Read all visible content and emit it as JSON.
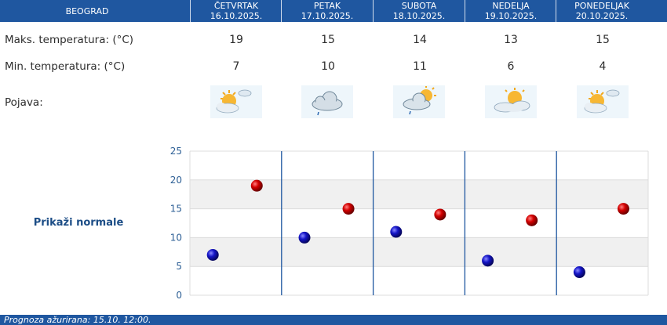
{
  "header": {
    "city": "BEOGRAD",
    "days": [
      {
        "name": "ČETVRTAK",
        "date": "16.10.2025."
      },
      {
        "name": "PETAK",
        "date": "17.10.2025."
      },
      {
        "name": "SUBOTA",
        "date": "18.10.2025."
      },
      {
        "name": "NEDELJA",
        "date": "19.10.2025."
      },
      {
        "name": "PONEDELJAK",
        "date": "20.10.2025."
      }
    ]
  },
  "rows": {
    "max_label": "Maks. temperatura: (°C)",
    "min_label": "Min. temperatura: (°C)",
    "phenomenon_label": "Pojava:"
  },
  "max_temps": [
    "19",
    "15",
    "14",
    "13",
    "15"
  ],
  "min_temps": [
    "7",
    "10",
    "11",
    "6",
    "4"
  ],
  "icons": [
    "sun-cloud-icon",
    "cloud-rain-icon",
    "cloud-sun-rain-icon",
    "sun-clouds-icon",
    "sun-cloud-icon"
  ],
  "normals_link": "Prikaži normale",
  "footer": "Prognoza ažurirana:  15.10. 12:00.",
  "colors": {
    "header_bg": "#1f57a0",
    "max_dot": "#c00000",
    "min_dot": "#1010b8",
    "divider": "#1f57a0",
    "link": "#1c4d86"
  },
  "chart_data": {
    "type": "scatter",
    "categories": [
      "16.10.2025.",
      "17.10.2025.",
      "18.10.2025.",
      "19.10.2025.",
      "20.10.2025."
    ],
    "series": [
      {
        "values": [
          19,
          15,
          14,
          13,
          15
        ],
        "color": "#c00000"
      },
      {
        "values": [
          7,
          10,
          11,
          6,
          4
        ],
        "color": "#1010b8"
      }
    ],
    "y_ticks": [
      0,
      5,
      10,
      15,
      20,
      25
    ],
    "ylim": [
      0,
      25
    ],
    "grid": true
  }
}
